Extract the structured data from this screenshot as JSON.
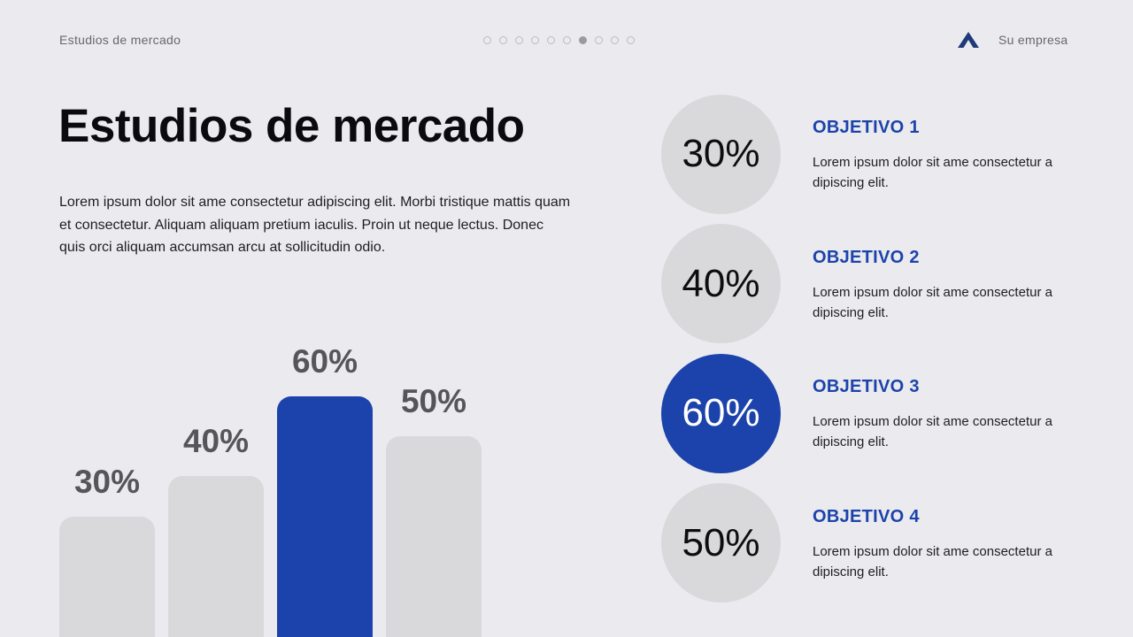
{
  "header": {
    "section_label": "Estudios de mercado",
    "brand_name": "Su empresa",
    "brand_icon": "triangle-a-logo",
    "pagination": {
      "total": 10,
      "active_index": 6
    }
  },
  "title": "Estudios de mercado",
  "description": "Lorem ipsum dolor sit ame consectetur adipiscing elit. Morbi tristique mattis quam et consectetur. Aliquam aliquam pretium iaculis. Proin ut neque lectus. Donec quis orci aliquam accumsan arcu at sollicitudin odio.",
  "colors": {
    "accent": "#1c43ab",
    "muted": "#d9d9dc",
    "background": "#ebebef"
  },
  "chart_data": {
    "type": "bar",
    "categories": [
      "",
      "",
      "",
      ""
    ],
    "values": [
      30,
      40,
      60,
      50
    ],
    "value_labels": [
      "30%",
      "40%",
      "60%",
      "50%"
    ],
    "highlight_index": 2,
    "ylim": [
      0,
      100
    ],
    "title": "",
    "xlabel": "",
    "ylabel": "",
    "grid": false
  },
  "objectives": [
    {
      "value": "30%",
      "title": "OBJETIVO 1",
      "text": "Lorem ipsum dolor sit ame consectetur a dipiscing elit.",
      "highlight": false
    },
    {
      "value": "40%",
      "title": "OBJETIVO 2",
      "text": "Lorem ipsum dolor sit ame consectetur a dipiscing elit.",
      "highlight": false
    },
    {
      "value": "60%",
      "title": "OBJETIVO 3",
      "text": "Lorem ipsum dolor sit ame consectetur a dipiscing elit.",
      "highlight": true
    },
    {
      "value": "50%",
      "title": "OBJETIVO 4",
      "text": "Lorem ipsum dolor sit ame consectetur a dipiscing elit.",
      "highlight": false
    }
  ]
}
